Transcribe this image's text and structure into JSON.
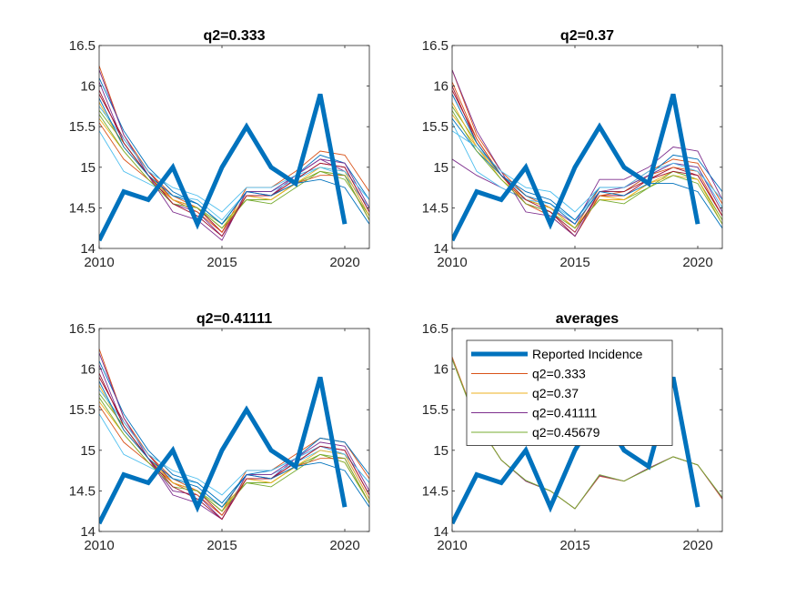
{
  "chart_data": [
    {
      "type": "line",
      "title": "q2=0.333",
      "xlim": [
        2010,
        2021
      ],
      "ylim": [
        14,
        16.5
      ],
      "xticks": [
        2010,
        2015,
        2020
      ],
      "yticks": [
        14,
        14.5,
        15,
        15.5,
        16,
        16.5
      ],
      "x": [
        2010,
        2011,
        2012,
        2013,
        2014,
        2015,
        2016,
        2017,
        2018,
        2019,
        2020,
        2021
      ],
      "reported_incidence": {
        "x": [
          2010,
          2011,
          2012,
          2013,
          2014,
          2015,
          2016,
          2017,
          2018,
          2019,
          2020
        ],
        "values": [
          14.1,
          14.7,
          14.6,
          15.0,
          14.3,
          15.0,
          15.5,
          15.0,
          14.8,
          15.9,
          14.3
        ],
        "color": "#0072BD"
      },
      "series": [
        {
          "color": "#D95319",
          "values": [
            16.25,
            15.4,
            14.95,
            14.65,
            14.5,
            14.2,
            14.75,
            14.75,
            14.95,
            15.2,
            15.15,
            14.7
          ]
        },
        {
          "color": "#EDB120",
          "values": [
            15.6,
            15.2,
            14.85,
            14.6,
            14.5,
            14.25,
            14.6,
            14.6,
            14.8,
            14.95,
            14.9,
            14.35
          ]
        },
        {
          "color": "#7E2F8E",
          "values": [
            16.05,
            15.3,
            14.9,
            14.55,
            14.45,
            14.15,
            14.7,
            14.65,
            14.9,
            15.1,
            14.95,
            14.4
          ]
        },
        {
          "color": "#77AC30",
          "values": [
            15.7,
            15.3,
            14.9,
            14.6,
            14.5,
            14.3,
            14.6,
            14.6,
            14.8,
            14.95,
            14.85,
            14.4
          ]
        },
        {
          "color": "#4DBEEE",
          "values": [
            15.45,
            14.95,
            14.8,
            14.65,
            14.6,
            14.35,
            14.7,
            14.7,
            14.85,
            15.0,
            14.9,
            14.5
          ]
        },
        {
          "color": "#A2142F",
          "values": [
            15.9,
            15.35,
            14.95,
            14.6,
            14.5,
            14.2,
            14.65,
            14.65,
            14.85,
            15.05,
            15.0,
            14.45
          ]
        },
        {
          "color": "#0072BD",
          "values": [
            16.1,
            15.45,
            15.0,
            14.7,
            14.55,
            14.3,
            14.7,
            14.7,
            14.9,
            15.15,
            15.05,
            14.6
          ]
        },
        {
          "color": "#D95319",
          "values": [
            15.55,
            15.1,
            14.85,
            14.6,
            14.45,
            14.2,
            14.65,
            14.65,
            14.8,
            14.9,
            14.9,
            14.35
          ]
        },
        {
          "color": "#EDB120",
          "values": [
            15.8,
            15.25,
            14.9,
            14.6,
            14.5,
            14.25,
            14.65,
            14.6,
            14.8,
            15.0,
            14.95,
            14.4
          ]
        },
        {
          "color": "#7E2F8E",
          "values": [
            16.2,
            15.4,
            14.9,
            14.45,
            14.35,
            14.1,
            14.7,
            14.7,
            14.9,
            15.1,
            15.05,
            14.5
          ]
        },
        {
          "color": "#77AC30",
          "values": [
            15.65,
            15.2,
            14.85,
            14.55,
            14.5,
            14.25,
            14.6,
            14.55,
            14.75,
            14.95,
            14.9,
            14.35
          ]
        },
        {
          "color": "#4DBEEE",
          "values": [
            15.75,
            15.35,
            14.95,
            14.75,
            14.65,
            14.45,
            14.75,
            14.75,
            14.9,
            15.0,
            14.95,
            14.6
          ]
        },
        {
          "color": "#A2142F",
          "values": [
            15.95,
            15.3,
            14.9,
            14.55,
            14.4,
            14.15,
            14.65,
            14.65,
            14.85,
            15.05,
            15.0,
            14.45
          ]
        },
        {
          "color": "#0072BD",
          "values": [
            15.85,
            15.25,
            14.9,
            14.65,
            14.55,
            14.3,
            14.7,
            14.65,
            14.8,
            14.85,
            14.75,
            14.3
          ]
        }
      ]
    },
    {
      "type": "line",
      "title": "q2=0.37",
      "xlim": [
        2010,
        2021
      ],
      "ylim": [
        14,
        16.5
      ],
      "xticks": [
        2010,
        2015,
        2020
      ],
      "yticks": [
        14,
        14.5,
        15,
        15.5,
        16,
        16.5
      ],
      "x": [
        2010,
        2011,
        2012,
        2013,
        2014,
        2015,
        2016,
        2017,
        2018,
        2019,
        2020,
        2021
      ],
      "reported_incidence": {
        "x": [
          2010,
          2011,
          2012,
          2013,
          2014,
          2015,
          2016,
          2017,
          2018,
          2019,
          2020
        ],
        "values": [
          14.1,
          14.7,
          14.6,
          15.0,
          14.3,
          15.0,
          15.5,
          15.0,
          14.8,
          15.9,
          14.3
        ],
        "color": "#0072BD"
      },
      "series": [
        {
          "color": "#D95319",
          "values": [
            16.2,
            15.4,
            14.95,
            14.65,
            14.5,
            14.25,
            14.75,
            14.75,
            14.95,
            15.1,
            15.05,
            14.55
          ]
        },
        {
          "color": "#EDB120",
          "values": [
            15.65,
            15.25,
            14.85,
            14.6,
            14.5,
            14.25,
            14.65,
            14.6,
            14.8,
            14.95,
            14.85,
            14.35
          ]
        },
        {
          "color": "#7E2F8E",
          "values": [
            15.1,
            14.9,
            14.75,
            14.6,
            14.5,
            14.3,
            14.85,
            14.85,
            15.0,
            15.25,
            15.2,
            14.6
          ]
        },
        {
          "color": "#77AC30",
          "values": [
            15.75,
            15.3,
            14.9,
            14.6,
            14.5,
            14.25,
            14.6,
            14.6,
            14.75,
            14.95,
            14.85,
            14.35
          ]
        },
        {
          "color": "#4DBEEE",
          "values": [
            15.55,
            14.95,
            14.75,
            14.6,
            14.55,
            14.35,
            14.7,
            14.7,
            14.9,
            15.05,
            15.0,
            14.5
          ]
        },
        {
          "color": "#A2142F",
          "values": [
            15.95,
            15.35,
            14.9,
            14.55,
            14.45,
            14.15,
            14.65,
            14.65,
            14.85,
            15.0,
            14.9,
            14.4
          ]
        },
        {
          "color": "#0072BD",
          "values": [
            15.6,
            15.2,
            14.9,
            14.7,
            14.6,
            14.35,
            14.75,
            14.75,
            14.9,
            15.15,
            15.1,
            14.7
          ]
        },
        {
          "color": "#D95319",
          "values": [
            16.05,
            15.35,
            14.9,
            14.55,
            14.4,
            14.15,
            14.65,
            14.7,
            14.9,
            15.0,
            14.95,
            14.4
          ]
        },
        {
          "color": "#EDB120",
          "values": [
            15.8,
            15.25,
            14.9,
            14.6,
            14.5,
            14.25,
            14.6,
            14.6,
            14.8,
            14.9,
            14.85,
            14.3
          ]
        },
        {
          "color": "#7E2F8E",
          "values": [
            16.2,
            15.45,
            14.95,
            14.45,
            14.4,
            14.15,
            14.7,
            14.75,
            14.9,
            15.05,
            15.0,
            14.45
          ]
        },
        {
          "color": "#77AC30",
          "values": [
            15.7,
            15.2,
            14.85,
            14.55,
            14.45,
            14.25,
            14.6,
            14.55,
            14.75,
            14.9,
            14.8,
            14.3
          ]
        },
        {
          "color": "#4DBEEE",
          "values": [
            15.45,
            15.25,
            14.95,
            14.75,
            14.7,
            14.45,
            14.75,
            14.75,
            14.95,
            15.05,
            14.95,
            14.6
          ]
        },
        {
          "color": "#A2142F",
          "values": [
            16.0,
            15.3,
            14.9,
            14.6,
            14.45,
            14.2,
            14.7,
            14.7,
            14.85,
            14.95,
            14.9,
            14.4
          ]
        },
        {
          "color": "#0072BD",
          "values": [
            15.9,
            15.3,
            14.9,
            14.65,
            14.55,
            14.3,
            14.7,
            14.65,
            14.8,
            14.8,
            14.7,
            14.25
          ]
        }
      ]
    },
    {
      "type": "line",
      "title": "q2=0.41111",
      "xlim": [
        2010,
        2021
      ],
      "ylim": [
        14,
        16.5
      ],
      "xticks": [
        2010,
        2015,
        2020
      ],
      "yticks": [
        14,
        14.5,
        15,
        15.5,
        16,
        16.5
      ],
      "x": [
        2010,
        2011,
        2012,
        2013,
        2014,
        2015,
        2016,
        2017,
        2018,
        2019,
        2020,
        2021
      ],
      "reported_incidence": {
        "x": [
          2010,
          2011,
          2012,
          2013,
          2014,
          2015,
          2016,
          2017,
          2018,
          2019,
          2020
        ],
        "values": [
          14.1,
          14.7,
          14.6,
          15.0,
          14.3,
          15.0,
          15.5,
          15.0,
          14.8,
          15.9,
          14.3
        ],
        "color": "#0072BD"
      },
      "series": [
        {
          "color": "#D95319",
          "values": [
            16.25,
            15.4,
            14.95,
            14.65,
            14.5,
            14.25,
            14.75,
            14.75,
            14.95,
            15.15,
            15.1,
            14.65
          ]
        },
        {
          "color": "#EDB120",
          "values": [
            15.6,
            15.2,
            14.85,
            14.6,
            14.5,
            14.25,
            14.6,
            14.6,
            14.8,
            14.95,
            14.85,
            14.35
          ]
        },
        {
          "color": "#7E2F8E",
          "values": [
            16.05,
            15.3,
            14.9,
            14.5,
            14.45,
            14.15,
            14.7,
            14.65,
            14.9,
            15.05,
            14.95,
            14.4
          ]
        },
        {
          "color": "#77AC30",
          "values": [
            15.7,
            15.3,
            14.9,
            14.6,
            14.5,
            14.3,
            14.6,
            14.6,
            14.8,
            14.95,
            14.85,
            14.35
          ]
        },
        {
          "color": "#4DBEEE",
          "values": [
            15.45,
            14.95,
            14.8,
            14.65,
            14.6,
            14.35,
            14.7,
            14.7,
            14.85,
            15.0,
            14.95,
            14.6
          ]
        },
        {
          "color": "#A2142F",
          "values": [
            15.9,
            15.35,
            14.95,
            14.6,
            14.5,
            14.2,
            14.65,
            14.65,
            14.85,
            15.05,
            15.0,
            14.45
          ]
        },
        {
          "color": "#0072BD",
          "values": [
            16.1,
            15.45,
            15.0,
            14.7,
            14.6,
            14.35,
            14.7,
            14.75,
            14.9,
            15.15,
            15.1,
            14.7
          ]
        },
        {
          "color": "#D95319",
          "values": [
            15.55,
            15.1,
            14.85,
            14.6,
            14.45,
            14.2,
            14.65,
            14.65,
            14.8,
            14.9,
            14.9,
            14.35
          ]
        },
        {
          "color": "#EDB120",
          "values": [
            15.8,
            15.25,
            14.9,
            14.6,
            14.5,
            14.25,
            14.65,
            14.6,
            14.8,
            15.0,
            14.95,
            14.4
          ]
        },
        {
          "color": "#7E2F8E",
          "values": [
            16.2,
            15.4,
            14.9,
            14.45,
            14.35,
            14.15,
            14.7,
            14.7,
            14.9,
            15.1,
            15.05,
            14.5
          ]
        },
        {
          "color": "#77AC30",
          "values": [
            15.65,
            15.2,
            14.85,
            14.55,
            14.5,
            14.25,
            14.6,
            14.55,
            14.75,
            14.95,
            14.9,
            14.35
          ]
        },
        {
          "color": "#4DBEEE",
          "values": [
            15.75,
            15.35,
            14.95,
            14.75,
            14.65,
            14.45,
            14.75,
            14.75,
            14.9,
            15.05,
            14.95,
            14.6
          ]
        },
        {
          "color": "#A2142F",
          "values": [
            15.95,
            15.3,
            14.9,
            14.55,
            14.4,
            14.15,
            14.65,
            14.65,
            14.85,
            15.05,
            15.0,
            14.45
          ]
        },
        {
          "color": "#0072BD",
          "values": [
            15.85,
            15.25,
            14.9,
            14.65,
            14.55,
            14.3,
            14.7,
            14.65,
            14.8,
            14.85,
            14.75,
            14.3
          ]
        }
      ]
    },
    {
      "type": "line",
      "title": "averages",
      "xlim": [
        2010,
        2021
      ],
      "ylim": [
        14,
        16.5
      ],
      "xticks": [
        2010,
        2015,
        2020
      ],
      "yticks": [
        14,
        14.5,
        15,
        15.5,
        16,
        16.5
      ],
      "x": [
        2010,
        2011,
        2012,
        2013,
        2014,
        2015,
        2016,
        2017,
        2018,
        2019,
        2020,
        2021
      ],
      "legend_location": "top-left",
      "reported_incidence": {
        "name": "Reported Incidence",
        "x": [
          2010,
          2011,
          2012,
          2013,
          2014,
          2015,
          2016,
          2017,
          2018,
          2019,
          2020
        ],
        "values": [
          14.1,
          14.7,
          14.6,
          15.0,
          14.3,
          15.0,
          15.5,
          15.0,
          14.8,
          15.9,
          14.3
        ],
        "color": "#0072BD"
      },
      "series": [
        {
          "name": "q2=0.333",
          "color": "#D95319",
          "values": [
            16.15,
            15.35,
            14.88,
            14.62,
            14.5,
            14.28,
            14.68,
            14.62,
            14.78,
            14.92,
            14.82,
            14.4
          ]
        },
        {
          "name": "q2=0.37",
          "color": "#EDB120",
          "values": [
            16.14,
            15.35,
            14.88,
            14.62,
            14.5,
            14.28,
            14.69,
            14.62,
            14.78,
            14.92,
            14.82,
            14.41
          ]
        },
        {
          "name": "q2=0.41111",
          "color": "#7E2F8E",
          "values": [
            16.13,
            15.34,
            14.88,
            14.62,
            14.5,
            14.28,
            14.69,
            14.62,
            14.78,
            14.92,
            14.82,
            14.41
          ]
        },
        {
          "name": "q2=0.45679",
          "color": "#77AC30",
          "values": [
            16.12,
            15.34,
            14.88,
            14.63,
            14.5,
            14.28,
            14.7,
            14.62,
            14.77,
            14.92,
            14.82,
            14.42
          ]
        }
      ]
    }
  ]
}
